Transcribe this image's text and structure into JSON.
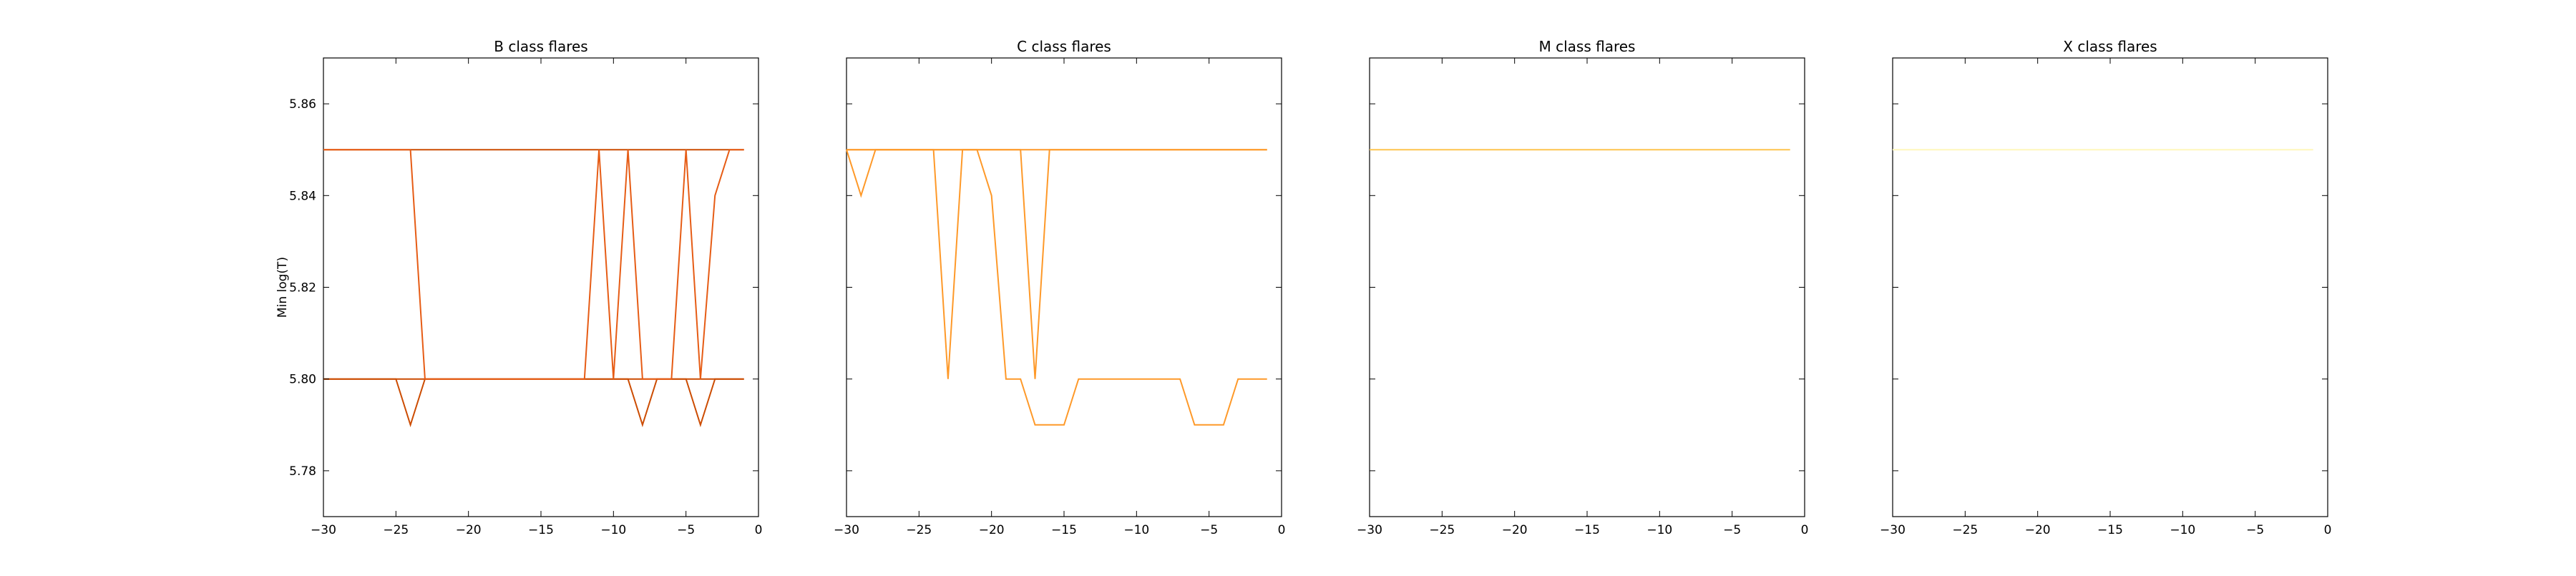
{
  "chart_data": [
    {
      "type": "line",
      "title": "B class flares",
      "ylabel": "Min log(T)",
      "xlabel": "",
      "xlim": [
        -30,
        0
      ],
      "ylim": [
        5.77,
        5.87
      ],
      "xticks": [
        "−30",
        "−25",
        "−20",
        "−15",
        "−10",
        "−5",
        "0"
      ],
      "yticks": [
        "5.78",
        "5.80",
        "5.82",
        "5.84",
        "5.86"
      ],
      "series": [
        {
          "color": "#cc4c02",
          "x": [
            -30,
            -1
          ],
          "y": [
            5.85,
            5.85
          ]
        },
        {
          "color": "#cc4c02",
          "x": [
            -30,
            -1
          ],
          "y": [
            5.8,
            5.8
          ]
        },
        {
          "color": "#cc4c02",
          "x": [
            -30,
            -29,
            -28,
            -27,
            -26,
            -25,
            -24,
            -23,
            -22,
            -21,
            -20,
            -19,
            -18,
            -17,
            -16,
            -15,
            -14,
            -13,
            -12,
            -11,
            -10,
            -9,
            -8,
            -7,
            -6,
            -5,
            -4,
            -3,
            -2,
            -1
          ],
          "y": [
            5.8,
            5.8,
            5.8,
            5.8,
            5.8,
            5.8,
            5.79,
            5.8,
            5.8,
            5.8,
            5.8,
            5.8,
            5.8,
            5.8,
            5.8,
            5.8,
            5.8,
            5.8,
            5.8,
            5.8,
            5.8,
            5.8,
            5.79,
            5.8,
            5.8,
            5.8,
            5.79,
            5.8,
            5.8,
            5.8
          ]
        },
        {
          "color": "#e65c15",
          "x": [
            -30,
            -29,
            -28,
            -27,
            -26,
            -25,
            -24,
            -23,
            -22,
            -21,
            -20,
            -19,
            -18,
            -17,
            -16,
            -15,
            -14,
            -13,
            -12,
            -11,
            -10,
            -9,
            -8,
            -7,
            -6,
            -5,
            -4,
            -3,
            -2,
            -1
          ],
          "y": [
            5.85,
            5.85,
            5.85,
            5.85,
            5.85,
            5.85,
            5.85,
            5.8,
            5.8,
            5.8,
            5.8,
            5.8,
            5.8,
            5.8,
            5.8,
            5.8,
            5.8,
            5.8,
            5.8,
            5.85,
            5.8,
            5.85,
            5.8,
            5.8,
            5.8,
            5.85,
            5.8,
            5.84,
            5.85,
            5.85
          ]
        }
      ]
    },
    {
      "type": "line",
      "title": "C class flares",
      "ylabel": "",
      "xlabel": "",
      "xlim": [
        -30,
        0
      ],
      "ylim": [
        5.77,
        5.87
      ],
      "xticks": [
        "−30",
        "−25",
        "−20",
        "−15",
        "−10",
        "−5",
        "0"
      ],
      "yticks": [],
      "series": [
        {
          "color": "#fe9929",
          "x": [
            -30,
            -1
          ],
          "y": [
            5.85,
            5.85
          ]
        },
        {
          "color": "#fe9929",
          "x": [
            -30,
            -29,
            -28,
            -27,
            -26,
            -25,
            -24,
            -23,
            -22,
            -21,
            -20,
            -19,
            -18,
            -17,
            -16,
            -15,
            -14,
            -13,
            -12,
            -11,
            -10,
            -9,
            -8,
            -7,
            -6,
            -5,
            -4,
            -3,
            -2,
            -1
          ],
          "y": [
            5.85,
            5.84,
            5.85,
            5.85,
            5.85,
            5.85,
            5.85,
            5.8,
            5.85,
            5.85,
            5.84,
            5.8,
            5.8,
            5.79,
            5.79,
            5.79,
            5.8,
            5.8,
            5.8,
            5.8,
            5.8,
            5.8,
            5.8,
            5.8,
            5.79,
            5.79,
            5.79,
            5.8,
            5.8,
            5.8
          ]
        },
        {
          "color": "#fe9929",
          "x": [
            -30,
            -29,
            -28,
            -27,
            -26,
            -25,
            -24,
            -23,
            -22,
            -21,
            -20,
            -19,
            -18,
            -17,
            -16,
            -15,
            -14,
            -13,
            -12,
            -11,
            -10,
            -9,
            -8,
            -7,
            -6,
            -5,
            -4,
            -3,
            -2,
            -1
          ],
          "y": [
            5.85,
            5.85,
            5.85,
            5.85,
            5.85,
            5.85,
            5.85,
            5.85,
            5.85,
            5.85,
            5.85,
            5.85,
            5.85,
            5.8,
            5.85,
            5.85,
            5.85,
            5.85,
            5.85,
            5.85,
            5.85,
            5.85,
            5.85,
            5.85,
            5.85,
            5.85,
            5.85,
            5.85,
            5.85,
            5.85
          ]
        }
      ]
    },
    {
      "type": "line",
      "title": "M class flares",
      "ylabel": "",
      "xlabel": "",
      "xlim": [
        -30,
        0
      ],
      "ylim": [
        5.77,
        5.87
      ],
      "xticks": [
        "−30",
        "−25",
        "−20",
        "−15",
        "−10",
        "−5",
        "0"
      ],
      "yticks": [],
      "series": [
        {
          "color": "#fec44f",
          "x": [
            -30,
            -1
          ],
          "y": [
            5.85,
            5.85
          ]
        }
      ]
    },
    {
      "type": "line",
      "title": "X class flares",
      "ylabel": "",
      "xlabel": "",
      "xlim": [
        -30,
        0
      ],
      "ylim": [
        5.77,
        5.87
      ],
      "xticks": [
        "−30",
        "−25",
        "−20",
        "−15",
        "−10",
        "−5",
        "0"
      ],
      "yticks": [],
      "series": [
        {
          "color": "#fff7bc",
          "x": [
            -30,
            -1
          ],
          "y": [
            5.85,
            5.85
          ]
        }
      ]
    }
  ]
}
